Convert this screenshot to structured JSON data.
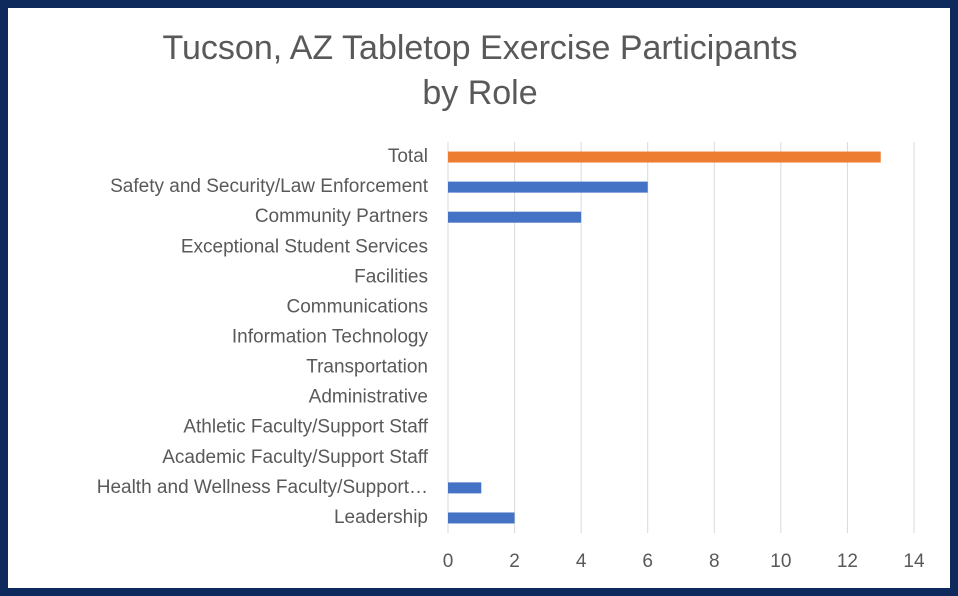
{
  "chart_data": {
    "type": "hbar",
    "title": [
      "Tucson, AZ Tabletop Exercise Participants",
      "by Role"
    ],
    "categories": [
      "Total",
      "Safety and Security/Law Enforcement",
      "Community Partners",
      "Exceptional Student Services",
      "Facilities",
      "Communications",
      "Information Technology",
      "Transportation",
      "Administrative",
      "Athletic Faculty/Support Staff",
      "Academic Faculty/Support Staff",
      "Health and Wellness Faculty/Support…",
      "Leadership"
    ],
    "values": [
      13,
      6,
      4,
      0,
      0,
      0,
      0,
      0,
      0,
      0,
      0,
      1,
      2
    ],
    "colors": [
      "#ed7d31",
      "#4472c4",
      "#4472c4",
      "#4472c4",
      "#4472c4",
      "#4472c4",
      "#4472c4",
      "#4472c4",
      "#4472c4",
      "#4472c4",
      "#4472c4",
      "#4472c4",
      "#4472c4"
    ],
    "xlim": [
      0,
      14
    ],
    "xticks": [
      0,
      2,
      4,
      6,
      8,
      10,
      12,
      14
    ],
    "grid": true
  }
}
